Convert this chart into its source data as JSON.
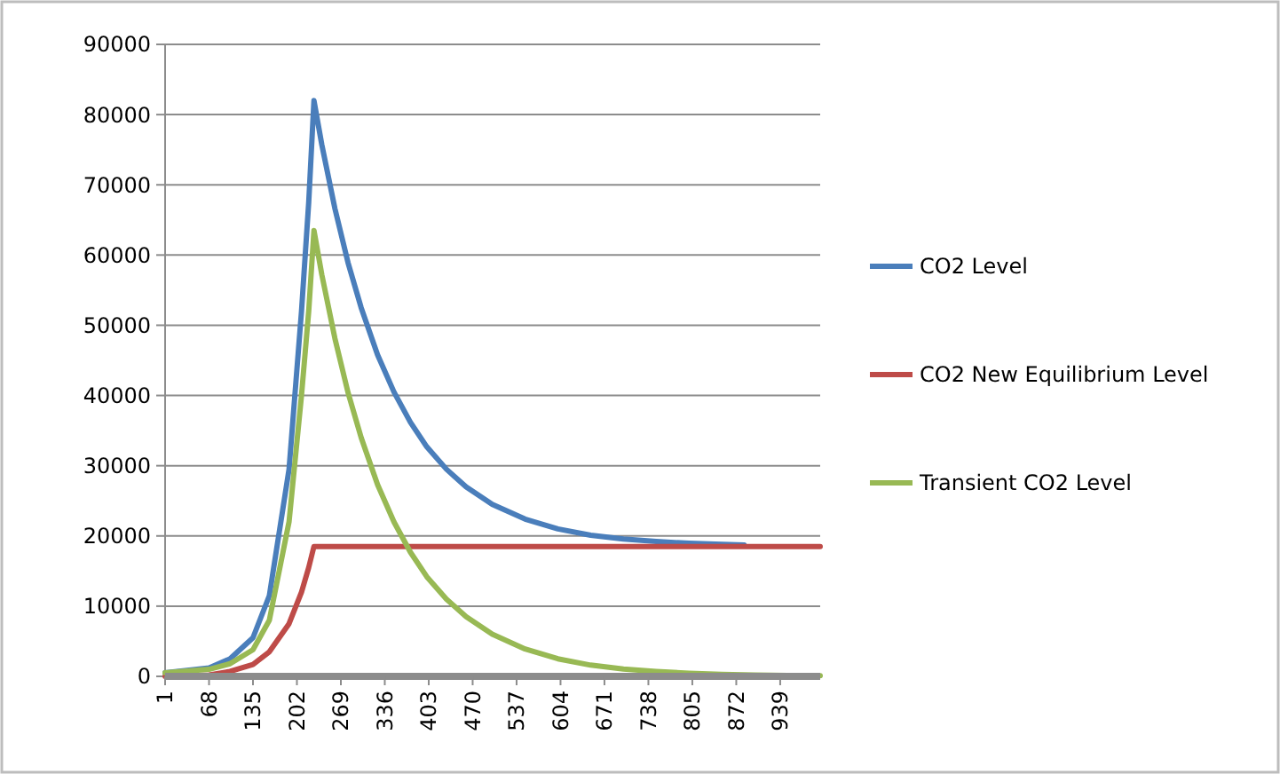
{
  "chart_data": {
    "type": "line",
    "xlim": [
      1,
      1000
    ],
    "xticks": [
      1,
      68,
      135,
      202,
      269,
      336,
      403,
      470,
      537,
      604,
      671,
      738,
      805,
      872,
      939
    ],
    "ylim": [
      0,
      90000
    ],
    "yticks": [
      0,
      10000,
      20000,
      30000,
      40000,
      50000,
      60000,
      70000,
      80000,
      90000
    ],
    "grid": "y",
    "legend": "right",
    "marker": "none",
    "line_style": "solid",
    "series": [
      {
        "name": "CO2 Level",
        "color": "#4a7ebb",
        "x": [
          1,
          68,
          100,
          135,
          160,
          190,
          209,
          220,
          228,
          240,
          260,
          280,
          300,
          325,
          350,
          375,
          400,
          430,
          460,
          500,
          550,
          600,
          650,
          700,
          750,
          800,
          850,
          884
        ],
        "values": [
          500,
          1200,
          2500,
          5500,
          11500,
          29500,
          52000,
          67500,
          82000,
          75700,
          66600,
          58900,
          52500,
          45800,
          40500,
          36200,
          32700,
          29500,
          27000,
          24500,
          22400,
          21000,
          20100,
          19550,
          19200,
          18950,
          18800,
          18700
        ]
      },
      {
        "name": "CO2 New Equilibrium Level",
        "color": "#be4b48",
        "x": [
          1,
          68,
          100,
          135,
          160,
          190,
          209,
          220,
          228,
          1000
        ],
        "values": [
          0,
          200,
          700,
          1700,
          3500,
          7500,
          12000,
          15500,
          18500,
          18500
        ]
      },
      {
        "name": "Transient CO2 Level",
        "color": "#98b954",
        "x": [
          1,
          68,
          100,
          135,
          160,
          190,
          209,
          220,
          228,
          240,
          260,
          280,
          300,
          325,
          350,
          375,
          400,
          430,
          460,
          500,
          550,
          600,
          650,
          700,
          750,
          800,
          850,
          900,
          950,
          1000
        ],
        "values": [
          500,
          1000,
          1800,
          3800,
          8000,
          22000,
          40000,
          52000,
          63500,
          57200,
          48100,
          40400,
          34000,
          27300,
          22000,
          17700,
          14200,
          11000,
          8500,
          6000,
          3900,
          2500,
          1600,
          1050,
          700,
          440,
          280,
          180,
          120,
          80
        ]
      }
    ]
  }
}
